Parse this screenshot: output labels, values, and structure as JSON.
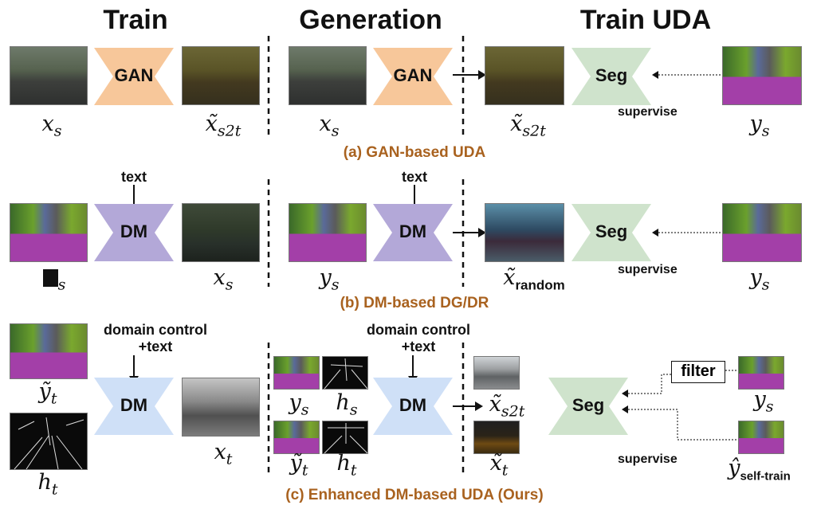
{
  "headers": {
    "train": "Train",
    "generation": "Generation",
    "train_uda": "Train UDA"
  },
  "captions": {
    "a": "(a) GAN-based UDA",
    "b": "(b) DM-based DG/DR",
    "c": "(c) Enhanced DM-based UDA (Ours)"
  },
  "blocks": {
    "gan": "GAN",
    "dm": "DM",
    "seg": "Seg"
  },
  "text_inputs": {
    "text": "text",
    "domain_control_line1": "domain control",
    "domain_control_line2": "+text"
  },
  "misc": {
    "supervise": "supervise",
    "filter": "filter"
  },
  "labels": {
    "x_s": "x",
    "x_s_sub": "s",
    "x_s2t": "x̃",
    "x_s2t_sub": "s2t",
    "y_s": "y",
    "y_s_sub": "s",
    "x_random": "x̃",
    "x_random_sub": "random",
    "box_s_sub": "s",
    "y_t_tilde": "ỹ",
    "y_t_sub": "t",
    "h_t": "h",
    "h_t_sub": "t",
    "x_t": "x",
    "x_t_sub": "t",
    "h_s": "h",
    "h_s_sub": "s",
    "x_t_tilde": "x̃",
    "y_self": "ŷ",
    "y_self_sub": "self-train"
  },
  "colors": {
    "gan": "#f7c79a",
    "dm_b": "#b3a8d8",
    "dm_c": "#cfe0f7",
    "seg": "#cfe3cc",
    "caption": "#a9621f"
  }
}
